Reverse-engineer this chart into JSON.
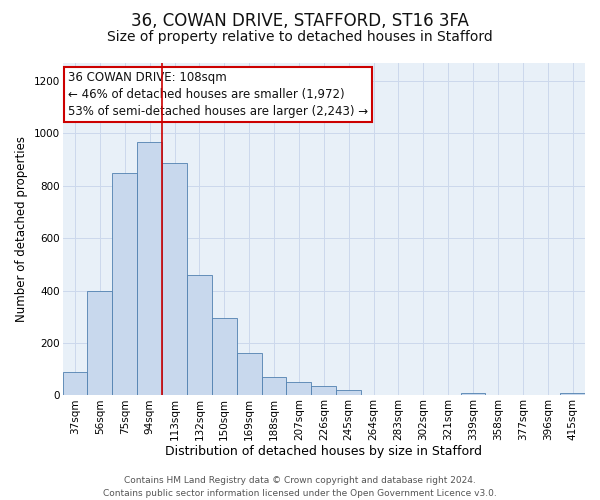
{
  "title": "36, COWAN DRIVE, STAFFORD, ST16 3FA",
  "subtitle": "Size of property relative to detached houses in Stafford",
  "xlabel": "Distribution of detached houses by size in Stafford",
  "ylabel": "Number of detached properties",
  "bar_labels": [
    "37sqm",
    "56sqm",
    "75sqm",
    "94sqm",
    "113sqm",
    "132sqm",
    "150sqm",
    "169sqm",
    "188sqm",
    "207sqm",
    "226sqm",
    "245sqm",
    "264sqm",
    "283sqm",
    "302sqm",
    "321sqm",
    "339sqm",
    "358sqm",
    "377sqm",
    "396sqm",
    "415sqm"
  ],
  "bar_values": [
    90,
    400,
    848,
    968,
    885,
    460,
    295,
    160,
    72,
    52,
    35,
    20,
    0,
    0,
    0,
    0,
    10,
    0,
    0,
    0,
    10
  ],
  "bar_color": "#c8d8ed",
  "bar_edge_color": "#5080b0",
  "vline_color": "#cc0000",
  "annotation_line1": "36 COWAN DRIVE: 108sqm",
  "annotation_line2": "← 46% of detached houses are smaller (1,972)",
  "annotation_line3": "53% of semi-detached houses are larger (2,243) →",
  "annotation_box_color": "#ffffff",
  "annotation_box_edge_color": "#cc0000",
  "ylim": [
    0,
    1270
  ],
  "yticks": [
    0,
    200,
    400,
    600,
    800,
    1000,
    1200
  ],
  "grid_color": "#ccd8ec",
  "background_color": "#e8f0f8",
  "footer_line1": "Contains HM Land Registry data © Crown copyright and database right 2024.",
  "footer_line2": "Contains public sector information licensed under the Open Government Licence v3.0.",
  "title_fontsize": 12,
  "subtitle_fontsize": 10,
  "xlabel_fontsize": 9,
  "ylabel_fontsize": 8.5,
  "tick_fontsize": 7.5,
  "annotation_fontsize": 8.5,
  "footer_fontsize": 6.5
}
